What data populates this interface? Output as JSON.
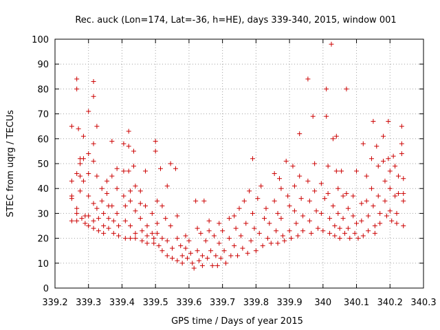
{
  "chart_data": {
    "type": "scatter",
    "title": "Rec. auck (Lon=174, Lat=-36, h=HE), days 339-340, 2015, window 001",
    "xlabel": "GPS time / Days of year 2015",
    "ylabel": "STEC from uqrg / TECUs",
    "xlim": [
      339.2,
      340.3
    ],
    "ylim": [
      0,
      100
    ],
    "x_ticks": [
      339.2,
      339.3,
      339.4,
      339.5,
      339.6,
      339.7,
      339.8,
      339.9,
      340.0,
      340.1,
      340.2,
      340.3
    ],
    "x_tick_labels": [
      "339.2",
      "339.3",
      "339.4",
      "339.5",
      "339.6",
      "339.7",
      "339.8",
      "339.9",
      "340",
      "340.1",
      "340.2",
      "340.3"
    ],
    "y_ticks": [
      0,
      10,
      20,
      30,
      40,
      50,
      60,
      70,
      80,
      90,
      100
    ],
    "y_tick_labels": [
      "0",
      "10",
      "20",
      "30",
      "40",
      "50",
      "60",
      "70",
      "80",
      "90",
      "100"
    ],
    "grid": true,
    "marker": "+",
    "marker_color": "#cc0000",
    "series": [
      {
        "name": "",
        "points": [
          [
            339.25,
            65
          ],
          [
            339.25,
            43
          ],
          [
            339.25,
            37
          ],
          [
            339.25,
            36
          ],
          [
            339.25,
            27
          ],
          [
            339.265,
            84
          ],
          [
            339.265,
            80
          ],
          [
            339.265,
            46
          ],
          [
            339.265,
            32
          ],
          [
            339.265,
            30
          ],
          [
            339.265,
            27
          ],
          [
            339.27,
            64
          ],
          [
            339.275,
            52
          ],
          [
            339.275,
            50
          ],
          [
            339.275,
            45
          ],
          [
            339.275,
            39
          ],
          [
            339.28,
            28
          ],
          [
            339.285,
            61
          ],
          [
            339.285,
            52
          ],
          [
            339.285,
            43
          ],
          [
            339.29,
            29
          ],
          [
            339.29,
            26
          ],
          [
            339.3,
            71
          ],
          [
            339.3,
            54
          ],
          [
            339.3,
            46
          ],
          [
            339.3,
            37
          ],
          [
            339.3,
            29
          ],
          [
            339.3,
            25
          ],
          [
            339.315,
            83
          ],
          [
            339.315,
            77
          ],
          [
            339.315,
            58
          ],
          [
            339.315,
            51
          ],
          [
            339.315,
            34
          ],
          [
            339.315,
            27
          ],
          [
            339.315,
            24
          ],
          [
            339.325,
            65
          ],
          [
            339.325,
            45
          ],
          [
            339.325,
            32
          ],
          [
            339.33,
            28
          ],
          [
            339.33,
            23
          ],
          [
            339.34,
            40
          ],
          [
            339.34,
            35
          ],
          [
            339.345,
            30
          ],
          [
            339.345,
            25
          ],
          [
            339.345,
            22
          ],
          [
            339.355,
            43
          ],
          [
            339.355,
            38
          ],
          [
            339.36,
            33
          ],
          [
            339.36,
            28
          ],
          [
            339.36,
            24
          ],
          [
            339.37,
            59
          ],
          [
            339.37,
            45
          ],
          [
            339.37,
            33
          ],
          [
            339.375,
            27
          ],
          [
            339.375,
            22
          ],
          [
            339.385,
            48
          ],
          [
            339.385,
            40
          ],
          [
            339.385,
            30
          ],
          [
            339.39,
            25
          ],
          [
            339.39,
            21
          ],
          [
            339.405,
            58
          ],
          [
            339.405,
            47
          ],
          [
            339.405,
            37
          ],
          [
            339.41,
            33
          ],
          [
            339.41,
            27
          ],
          [
            339.41,
            20
          ],
          [
            339.42,
            63
          ],
          [
            339.42,
            57
          ],
          [
            339.42,
            47
          ],
          [
            339.425,
            39
          ],
          [
            339.425,
            35
          ],
          [
            339.425,
            25
          ],
          [
            339.425,
            20
          ],
          [
            339.435,
            55
          ],
          [
            339.435,
            49
          ],
          [
            339.44,
            41
          ],
          [
            339.44,
            31
          ],
          [
            339.44,
            22
          ],
          [
            339.44,
            20
          ],
          [
            339.455,
            39
          ],
          [
            339.455,
            34
          ],
          [
            339.455,
            28
          ],
          [
            339.46,
            23
          ],
          [
            339.46,
            19
          ],
          [
            339.47,
            47
          ],
          [
            339.47,
            33
          ],
          [
            339.475,
            25
          ],
          [
            339.475,
            21
          ],
          [
            339.475,
            18
          ],
          [
            339.49,
            30
          ],
          [
            339.49,
            22
          ],
          [
            339.495,
            20
          ],
          [
            339.495,
            18
          ],
          [
            339.5,
            59
          ],
          [
            339.5,
            55
          ],
          [
            339.505,
            35
          ],
          [
            339.505,
            26
          ],
          [
            339.505,
            22
          ],
          [
            339.51,
            17
          ],
          [
            339.515,
            48
          ],
          [
            339.52,
            33
          ],
          [
            339.52,
            20
          ],
          [
            339.52,
            15
          ],
          [
            339.53,
            28
          ],
          [
            339.535,
            41
          ],
          [
            339.535,
            19
          ],
          [
            339.535,
            13
          ],
          [
            339.545,
            50
          ],
          [
            339.545,
            25
          ],
          [
            339.55,
            16
          ],
          [
            339.55,
            12
          ],
          [
            339.56,
            48
          ],
          [
            339.565,
            29
          ],
          [
            339.565,
            20
          ],
          [
            339.565,
            11
          ],
          [
            339.575,
            17
          ],
          [
            339.58,
            13
          ],
          [
            339.58,
            10
          ],
          [
            339.59,
            21
          ],
          [
            339.59,
            16
          ],
          [
            339.595,
            12
          ],
          [
            339.6,
            19
          ],
          [
            339.605,
            14
          ],
          [
            339.61,
            10
          ],
          [
            339.615,
            8
          ],
          [
            339.62,
            35
          ],
          [
            339.625,
            24
          ],
          [
            339.625,
            15
          ],
          [
            339.63,
            11
          ],
          [
            339.635,
            22
          ],
          [
            339.64,
            13
          ],
          [
            339.64,
            9
          ],
          [
            339.645,
            35
          ],
          [
            339.65,
            19
          ],
          [
            339.655,
            12
          ],
          [
            339.66,
            27
          ],
          [
            339.66,
            23
          ],
          [
            339.665,
            15
          ],
          [
            339.67,
            9
          ],
          [
            339.675,
            21
          ],
          [
            339.68,
            13
          ],
          [
            339.685,
            9
          ],
          [
            339.69,
            26
          ],
          [
            339.69,
            18
          ],
          [
            339.695,
            12
          ],
          [
            339.7,
            23
          ],
          [
            339.705,
            15
          ],
          [
            339.71,
            10
          ],
          [
            339.72,
            28
          ],
          [
            339.72,
            20
          ],
          [
            339.725,
            13
          ],
          [
            339.735,
            29
          ],
          [
            339.735,
            17
          ],
          [
            339.74,
            24
          ],
          [
            339.745,
            13
          ],
          [
            339.75,
            32
          ],
          [
            339.755,
            21
          ],
          [
            339.76,
            16
          ],
          [
            339.765,
            35
          ],
          [
            339.77,
            26
          ],
          [
            339.775,
            14
          ],
          [
            339.78,
            39
          ],
          [
            339.785,
            19
          ],
          [
            339.79,
            52
          ],
          [
            339.79,
            30
          ],
          [
            339.795,
            24
          ],
          [
            339.8,
            15
          ],
          [
            339.805,
            36
          ],
          [
            339.81,
            22
          ],
          [
            339.815,
            41
          ],
          [
            339.82,
            17
          ],
          [
            339.825,
            28
          ],
          [
            339.83,
            32
          ],
          [
            339.835,
            20
          ],
          [
            339.84,
            26
          ],
          [
            339.845,
            18
          ],
          [
            339.855,
            46
          ],
          [
            339.855,
            35
          ],
          [
            339.86,
            23
          ],
          [
            339.865,
            30
          ],
          [
            339.865,
            18
          ],
          [
            339.87,
            44
          ],
          [
            339.875,
            40
          ],
          [
            339.875,
            28
          ],
          [
            339.88,
            21
          ],
          [
            339.885,
            19
          ],
          [
            339.89,
            51
          ],
          [
            339.895,
            37
          ],
          [
            339.9,
            33
          ],
          [
            339.9,
            23
          ],
          [
            339.905,
            20
          ],
          [
            339.91,
            49
          ],
          [
            339.915,
            41
          ],
          [
            339.915,
            31
          ],
          [
            339.92,
            26
          ],
          [
            339.925,
            21
          ],
          [
            339.93,
            62
          ],
          [
            339.93,
            45
          ],
          [
            339.935,
            36
          ],
          [
            339.94,
            29
          ],
          [
            339.94,
            23
          ],
          [
            339.955,
            84
          ],
          [
            339.955,
            43
          ],
          [
            339.96,
            35
          ],
          [
            339.96,
            27
          ],
          [
            339.965,
            22
          ],
          [
            339.97,
            69
          ],
          [
            339.975,
            50
          ],
          [
            339.975,
            39
          ],
          [
            339.98,
            31
          ],
          [
            339.985,
            24
          ],
          [
            339.995,
            42
          ],
          [
            339.995,
            30
          ],
          [
            340.0,
            23
          ],
          [
            340.005,
            36
          ],
          [
            340.01,
            80
          ],
          [
            340.01,
            69
          ],
          [
            340.015,
            49
          ],
          [
            340.015,
            38
          ],
          [
            340.02,
            28
          ],
          [
            340.02,
            22
          ],
          [
            340.025,
            98
          ],
          [
            340.03,
            60
          ],
          [
            340.03,
            33
          ],
          [
            340.035,
            25
          ],
          [
            340.035,
            21
          ],
          [
            340.04,
            61
          ],
          [
            340.04,
            47
          ],
          [
            340.045,
            40
          ],
          [
            340.045,
            30
          ],
          [
            340.05,
            24
          ],
          [
            340.05,
            20
          ],
          [
            340.055,
            47
          ],
          [
            340.06,
            37
          ],
          [
            340.06,
            28
          ],
          [
            340.065,
            22
          ],
          [
            340.07,
            80
          ],
          [
            340.07,
            38
          ],
          [
            340.075,
            32
          ],
          [
            340.075,
            24
          ],
          [
            340.08,
            20
          ],
          [
            340.09,
            37
          ],
          [
            340.09,
            29
          ],
          [
            340.095,
            22
          ],
          [
            340.1,
            47
          ],
          [
            340.1,
            26
          ],
          [
            340.105,
            20
          ],
          [
            340.115,
            34
          ],
          [
            340.115,
            27
          ],
          [
            340.12,
            58
          ],
          [
            340.12,
            21
          ],
          [
            340.13,
            45
          ],
          [
            340.13,
            35
          ],
          [
            340.135,
            29
          ],
          [
            340.135,
            23
          ],
          [
            340.145,
            52
          ],
          [
            340.145,
            40
          ],
          [
            340.15,
            67
          ],
          [
            340.15,
            33
          ],
          [
            340.155,
            25
          ],
          [
            340.155,
            22
          ],
          [
            340.16,
            57
          ],
          [
            340.165,
            49
          ],
          [
            340.165,
            37
          ],
          [
            340.17,
            30
          ],
          [
            340.17,
            26
          ],
          [
            340.18,
            61
          ],
          [
            340.18,
            51
          ],
          [
            340.185,
            43
          ],
          [
            340.185,
            35
          ],
          [
            340.19,
            29
          ],
          [
            340.195,
            67
          ],
          [
            340.195,
            52
          ],
          [
            340.2,
            47
          ],
          [
            340.2,
            40
          ],
          [
            340.2,
            31
          ],
          [
            340.205,
            27
          ],
          [
            340.21,
            53
          ],
          [
            340.215,
            49
          ],
          [
            340.215,
            37
          ],
          [
            340.22,
            30
          ],
          [
            340.22,
            26
          ],
          [
            340.225,
            45
          ],
          [
            340.225,
            38
          ],
          [
            340.235,
            65
          ],
          [
            340.235,
            58
          ],
          [
            340.235,
            54
          ],
          [
            340.24,
            44
          ],
          [
            340.24,
            38
          ],
          [
            340.24,
            35
          ],
          [
            340.24,
            25
          ]
        ]
      }
    ]
  }
}
